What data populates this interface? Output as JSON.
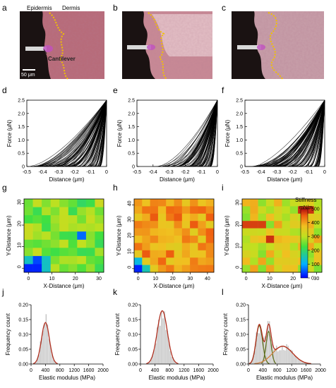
{
  "panel_letters": [
    "a",
    "b",
    "c",
    "d",
    "e",
    "f",
    "g",
    "h",
    "i",
    "j",
    "k",
    "l"
  ],
  "micro": {
    "epidermis_label": "Epidermis",
    "dermis_label": "Dermis",
    "cantilever_label": "Cantilever",
    "scale_bar_label": "50 μm",
    "tissue_colors": {
      "base": "#b86a78",
      "light": "#e6c6cc",
      "dark": "#7a3a4e",
      "boundary": "#f2c200"
    }
  },
  "force_curves": {
    "ylabel": "Force (μN)",
    "xlabel": "Distance (μm)",
    "x_ticks": [
      "-0.5",
      "-0.4",
      "-0.3",
      "-0.2",
      "-0.1",
      "0"
    ],
    "y_ticks": [
      "0",
      "0.5",
      "1.0",
      "1.5",
      "2.0",
      "2.5"
    ]
  },
  "heatmaps": {
    "ylabel": "Y-Distance (μm)",
    "xlabel": "X-Distance (μm)",
    "colorbar_title": "Stiffness",
    "colorbar_unit": "mN/m",
    "colorbar_ticks": [
      "0",
      "100",
      "200",
      "300",
      "400",
      "500"
    ],
    "g": {
      "x_ticks": [
        "0",
        "10",
        "20",
        "30"
      ],
      "y_ticks": [
        "0",
        "10",
        "20",
        "30"
      ]
    },
    "h": {
      "x_ticks": [
        "0",
        "10",
        "20",
        "30",
        "40"
      ],
      "y_ticks": [
        "0",
        "10",
        "20",
        "30",
        "40"
      ]
    },
    "i": {
      "x_ticks": [
        "0",
        "10",
        "20",
        "30"
      ],
      "y_ticks": [
        "0",
        "10",
        "20",
        "30"
      ]
    }
  },
  "histograms": {
    "ylabel": "Frequency count",
    "xlabel": "Elastic modulus (MPa)",
    "x_ticks": [
      "0",
      "400",
      "800",
      "1200",
      "1600",
      "2000"
    ],
    "y_ticks": [
      "0.00",
      "0.05",
      "0.10",
      "0.15",
      "0.20"
    ]
  },
  "chart_data": [
    {
      "type": "line",
      "panel": "d",
      "xlim": [
        -0.5,
        0
      ],
      "ylim": [
        0,
        2.5
      ]
    },
    {
      "type": "line",
      "panel": "e",
      "xlim": [
        -0.5,
        0
      ],
      "ylim": [
        0,
        2.5
      ]
    },
    {
      "type": "line",
      "panel": "f",
      "xlim": [
        -0.5,
        0
      ],
      "ylim": [
        0,
        2.5
      ]
    },
    {
      "type": "heatmap",
      "panel": "g",
      "zlim": [
        0,
        500
      ]
    },
    {
      "type": "heatmap",
      "panel": "h",
      "zlim": [
        0,
        500
      ]
    },
    {
      "type": "heatmap",
      "panel": "i",
      "zlim": [
        0,
        500
      ]
    },
    {
      "type": "bar",
      "panel": "j",
      "xlim": [
        0,
        2000
      ],
      "ylim": [
        0,
        0.2
      ],
      "fit_peaks_mpa": [
        400
      ]
    },
    {
      "type": "bar",
      "panel": "k",
      "xlim": [
        0,
        2000
      ],
      "ylim": [
        0,
        0.2
      ],
      "fit_peaks_mpa": [
        600
      ]
    },
    {
      "type": "bar",
      "panel": "l",
      "xlim": [
        0,
        2000
      ],
      "ylim": [
        0,
        0.2
      ],
      "fit_peaks_mpa": [
        300,
        550,
        950
      ]
    }
  ]
}
